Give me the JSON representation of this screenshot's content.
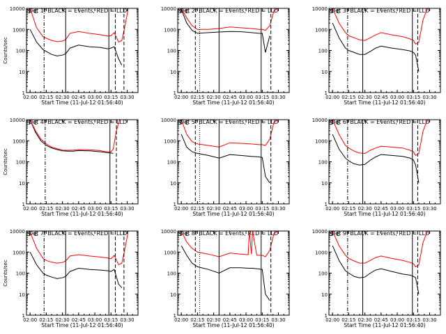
{
  "figure": {
    "background": "#ffffff",
    "axis_color": "#000000",
    "series_colors": {
      "events": "#000000",
      "lld": "#ff0000"
    }
  },
  "chart_data": [
    {
      "type": "line",
      "title": "Det 1f BLACK = Events, RED = LLD",
      "xlabel": "Start Time (11-Jul-12 01:56:40)",
      "ylabel": "Counts/sec",
      "x_ticks": [
        "02:00",
        "02:15",
        "02:30",
        "02:45",
        "03:00",
        "03:15",
        "03:30"
      ],
      "y_ticks": [
        "1",
        "10",
        "100",
        "1000",
        "10000"
      ],
      "xlim": [
        "01:56:40",
        "03:40"
      ],
      "ylim": [
        1,
        10000
      ],
      "yscale": "log",
      "x": [
        "02:00",
        "02:06",
        "02:12",
        "02:15",
        "02:20",
        "02:25",
        "02:30",
        "02:33",
        "02:37",
        "02:45",
        "02:55",
        "03:05",
        "03:12",
        "03:15",
        "03:18",
        "03:22",
        "03:25",
        "03:28",
        "03:31"
      ],
      "series": [
        {
          "name": "BLACK = Events",
          "values": [
            1000,
            250,
            110,
            90,
            65,
            55,
            60,
            70,
            130,
            180,
            150,
            140,
            120,
            130,
            150,
            40,
            20,
            null,
            null
          ]
        },
        {
          "name": "RED = LLD",
          "values": [
            10000,
            1200,
            450,
            380,
            300,
            260,
            280,
            330,
            650,
            800,
            650,
            560,
            480,
            500,
            700,
            250,
            300,
            1500,
            10000
          ]
        }
      ],
      "markers": [
        {
          "style": "dashdot",
          "x": "02:13"
        },
        {
          "style": "solid",
          "x": "02:33"
        },
        {
          "style": "solid",
          "x": "03:13"
        },
        {
          "style": "dashed",
          "x": "03:19"
        },
        {
          "style": "dashed",
          "x": "03:27"
        }
      ],
      "corner_labels": [
        "S",
        "E",
        "S",
        "E"
      ]
    },
    {
      "type": "line",
      "title": "Det 2f BLACK = Events, RED = LLD",
      "xlabel": "Start Time (11-Jul-12 01:56:40)",
      "ylabel": "",
      "x_ticks": [
        "02:00",
        "02:15",
        "02:30",
        "02:45",
        "03:00",
        "03:15",
        "03:30"
      ],
      "y_ticks": [
        "1",
        "10",
        "100",
        "1000",
        "10000"
      ],
      "xlim": [
        "01:56:40",
        "03:40"
      ],
      "ylim": [
        1,
        10000
      ],
      "yscale": "log",
      "x": [
        "02:00",
        "02:05",
        "02:10",
        "02:15",
        "02:25",
        "02:35",
        "02:45",
        "02:55",
        "03:05",
        "03:12",
        "03:15",
        "03:18",
        "03:22",
        "03:26",
        "03:30"
      ],
      "series": [
        {
          "name": "BLACK = Events",
          "values": [
            9000,
            2000,
            900,
            650,
            700,
            750,
            800,
            780,
            700,
            650,
            650,
            80,
            500,
            null,
            null
          ]
        },
        {
          "name": "RED = LLD",
          "values": [
            10000,
            3500,
            1500,
            1000,
            1000,
            1100,
            1300,
            1200,
            1100,
            1000,
            1000,
            900,
            1500,
            8000,
            10000
          ]
        }
      ],
      "markers": [
        {
          "style": "dashed",
          "x": "02:13"
        },
        {
          "style": "dotted",
          "x": "02:17"
        },
        {
          "style": "solid",
          "x": "02:35"
        },
        {
          "style": "solid",
          "x": "03:14"
        },
        {
          "style": "dashed",
          "x": "03:23"
        }
      ],
      "corner_labels": [
        "S",
        "E",
        "S",
        "E"
      ]
    },
    {
      "type": "line",
      "title": "Det 3f BLACK = Events, RED = LLD",
      "xlabel": "Start Time (11-Jul-12 01:56:40)",
      "ylabel": "",
      "x_ticks": [
        "02:00",
        "02:15",
        "02:30",
        "02:45",
        "03:00",
        "03:15",
        "03:30"
      ],
      "y_ticks": [
        "1",
        "10",
        "100",
        "1000",
        "10000"
      ],
      "xlim": [
        "01:56:40",
        "03:40"
      ],
      "ylim": [
        1,
        10000
      ],
      "yscale": "log",
      "x": [
        "02:00",
        "02:06",
        "02:12",
        "02:15",
        "02:20",
        "02:25",
        "02:30",
        "02:35",
        "02:40",
        "02:45",
        "02:55",
        "03:05",
        "03:12",
        "03:15",
        "03:17",
        "03:20",
        "03:24",
        "03:28"
      ],
      "series": [
        {
          "name": "BLACK = Events",
          "values": [
            2000,
            400,
            130,
            100,
            80,
            65,
            65,
            90,
            130,
            160,
            130,
            110,
            95,
            80,
            60,
            10,
            null,
            null
          ]
        },
        {
          "name": "RED = LLD",
          "values": [
            10000,
            2000,
            700,
            500,
            400,
            320,
            300,
            400,
            550,
            700,
            550,
            450,
            350,
            300,
            200,
            250,
            3000,
            10000
          ]
        }
      ],
      "markers": [
        {
          "style": "dashdot",
          "x": "02:14"
        },
        {
          "style": "solid",
          "x": "02:28"
        },
        {
          "style": "solid",
          "x": "03:14"
        },
        {
          "style": "dashed",
          "x": "03:19"
        }
      ],
      "corner_labels": [
        "S",
        "E",
        "S",
        "E"
      ]
    },
    {
      "type": "line",
      "title": "Det 4f BLACK = Events, RED = LLD",
      "xlabel": "Start Time (11-Jul-12 01:56:40)",
      "ylabel": "Counts/sec",
      "x_ticks": [
        "02:00",
        "02:15",
        "02:30",
        "02:45",
        "03:00",
        "03:15",
        "03:30"
      ],
      "y_ticks": [
        "1",
        "10",
        "100",
        "1000",
        "10000"
      ],
      "xlim": [
        "01:56:40",
        "03:40"
      ],
      "ylim": [
        1,
        10000
      ],
      "yscale": "log",
      "x": [
        "02:00",
        "02:05",
        "02:10",
        "02:15",
        "02:20",
        "02:25",
        "02:30",
        "02:35",
        "02:40",
        "02:45",
        "02:55",
        "03:05",
        "03:10",
        "03:15",
        "03:17",
        "03:20",
        "03:23"
      ],
      "series": [
        {
          "name": "BLACK = Events",
          "values": [
            10000,
            2500,
            1000,
            600,
            450,
            380,
            330,
            320,
            320,
            340,
            330,
            300,
            280,
            260,
            250,
            null,
            null
          ]
        },
        {
          "name": "RED = LLD",
          "values": [
            10000,
            3000,
            1200,
            700,
            500,
            420,
            360,
            350,
            360,
            380,
            370,
            340,
            300,
            300,
            400,
            3000,
            10000
          ]
        }
      ],
      "markers": [
        {
          "style": "dashdot",
          "x": "02:14"
        },
        {
          "style": "solid",
          "x": "03:14"
        },
        {
          "style": "dashed",
          "x": "03:20"
        }
      ],
      "corner_labels": [
        "S",
        "E"
      ]
    },
    {
      "type": "line",
      "title": "Det 5f BLACK = Events, RED = LLD",
      "xlabel": "Start Time (11-Jul-12 01:56:40)",
      "ylabel": "",
      "x_ticks": [
        "02:00",
        "02:15",
        "02:30",
        "02:45",
        "03:00",
        "03:15",
        "03:30"
      ],
      "y_ticks": [
        "1",
        "10",
        "100",
        "1000",
        "10000"
      ],
      "xlim": [
        "01:56:40",
        "03:40"
      ],
      "ylim": [
        1,
        10000
      ],
      "yscale": "log",
      "x": [
        "02:00",
        "02:05",
        "02:10",
        "02:15",
        "02:25",
        "02:35",
        "02:45",
        "02:55",
        "03:05",
        "03:12",
        "03:15",
        "03:18",
        "03:22",
        "03:26",
        "03:30"
      ],
      "series": [
        {
          "name": "BLACK = Events",
          "values": [
            2000,
            500,
            300,
            250,
            200,
            150,
            220,
            200,
            180,
            170,
            160,
            20,
            10,
            null,
            null
          ]
        },
        {
          "name": "RED = LLD",
          "values": [
            10000,
            2000,
            900,
            700,
            600,
            500,
            800,
            750,
            700,
            650,
            650,
            600,
            1200,
            8000,
            10000
          ]
        }
      ],
      "markers": [
        {
          "style": "dashed",
          "x": "02:13"
        },
        {
          "style": "dotted",
          "x": "02:17"
        },
        {
          "style": "solid",
          "x": "02:35"
        },
        {
          "style": "solid",
          "x": "03:14"
        },
        {
          "style": "dashed",
          "x": "03:23"
        }
      ],
      "corner_labels": [
        "S",
        "E",
        "S",
        "E"
      ]
    },
    {
      "type": "line",
      "title": "Det 6f BLACK = Events, RED = LLD",
      "xlabel": "Start Time (11-Jul-12 01:56:40)",
      "ylabel": "",
      "x_ticks": [
        "02:00",
        "02:15",
        "02:30",
        "02:45",
        "03:00",
        "03:15",
        "03:30"
      ],
      "y_ticks": [
        "1",
        "10",
        "100",
        "1000",
        "10000"
      ],
      "xlim": [
        "01:56:40",
        "03:40"
      ],
      "ylim": [
        1,
        10000
      ],
      "yscale": "log",
      "x": [
        "02:00",
        "02:06",
        "02:12",
        "02:15",
        "02:20",
        "02:25",
        "02:30",
        "02:35",
        "02:40",
        "02:45",
        "02:55",
        "03:05",
        "03:12",
        "03:15",
        "03:17",
        "03:20",
        "03:24",
        "03:28"
      ],
      "series": [
        {
          "name": "BLACK = Events",
          "values": [
            2000,
            400,
            150,
            110,
            80,
            70,
            75,
            120,
            170,
            220,
            200,
            180,
            150,
            120,
            70,
            10,
            null,
            null
          ]
        },
        {
          "name": "RED = LLD",
          "values": [
            10000,
            2000,
            600,
            450,
            320,
            260,
            250,
            350,
            450,
            550,
            500,
            450,
            350,
            300,
            200,
            250,
            3000,
            10000
          ]
        }
      ],
      "markers": [
        {
          "style": "dashdot",
          "x": "02:14"
        },
        {
          "style": "solid",
          "x": "02:28"
        },
        {
          "style": "solid",
          "x": "03:14"
        },
        {
          "style": "dashed",
          "x": "03:19"
        }
      ],
      "corner_labels": [
        "S",
        "E",
        "S",
        "E"
      ]
    },
    {
      "type": "line",
      "title": "Det 7f BLACK = Events, RED = LLD",
      "xlabel": "Start Time (11-Jul-12 01:56:40)",
      "ylabel": "Counts/sec",
      "x_ticks": [
        "02:00",
        "02:15",
        "02:30",
        "02:45",
        "03:00",
        "03:15",
        "03:30"
      ],
      "y_ticks": [
        "1",
        "10",
        "100",
        "1000",
        "10000"
      ],
      "xlim": [
        "01:56:40",
        "03:40"
      ],
      "ylim": [
        1,
        10000
      ],
      "yscale": "log",
      "x": [
        "02:00",
        "02:06",
        "02:12",
        "02:15",
        "02:20",
        "02:25",
        "02:30",
        "02:33",
        "02:37",
        "02:45",
        "02:55",
        "03:05",
        "03:12",
        "03:15",
        "03:18",
        "03:22",
        "03:25",
        "03:28",
        "03:31"
      ],
      "series": [
        {
          "name": "BLACK = Events",
          "values": [
            1000,
            250,
            100,
            80,
            65,
            55,
            60,
            70,
            120,
            170,
            150,
            140,
            130,
            120,
            150,
            30,
            20,
            null,
            null
          ]
        },
        {
          "name": "RED = LLD",
          "values": [
            9000,
            1500,
            500,
            400,
            330,
            300,
            320,
            380,
            650,
            750,
            650,
            580,
            520,
            480,
            700,
            250,
            300,
            1500,
            10000
          ]
        }
      ],
      "markers": [
        {
          "style": "dashdot",
          "x": "02:13"
        },
        {
          "style": "solid",
          "x": "02:33"
        },
        {
          "style": "solid",
          "x": "03:13"
        },
        {
          "style": "dashed",
          "x": "03:19"
        },
        {
          "style": "dashed",
          "x": "03:27"
        }
      ],
      "corner_labels": [
        "S",
        "E",
        "S",
        "E"
      ]
    },
    {
      "type": "line",
      "title": "Det 8f BLACK = Events, RED = LLD",
      "xlabel": "Start Time (11-Jul-12 01:56:40)",
      "ylabel": "",
      "x_ticks": [
        "02:00",
        "02:15",
        "02:30",
        "02:45",
        "03:00",
        "03:15",
        "03:30"
      ],
      "y_ticks": [
        "1",
        "10",
        "100",
        "1000",
        "10000"
      ],
      "xlim": [
        "01:56:40",
        "03:40"
      ],
      "ylim": [
        1,
        10000
      ],
      "yscale": "log",
      "x": [
        "02:00",
        "02:05",
        "02:10",
        "02:15",
        "02:25",
        "02:35",
        "02:45",
        "02:55",
        "03:02",
        "03:03",
        "03:05",
        "03:06",
        "03:10",
        "03:15",
        "03:18",
        "03:22",
        "03:26",
        "03:30"
      ],
      "series": [
        {
          "name": "BLACK = Events",
          "values": [
            2000,
            700,
            300,
            200,
            150,
            100,
            180,
            180,
            170,
            170,
            170,
            170,
            160,
            150,
            10,
            5,
            null,
            null
          ]
        },
        {
          "name": "RED = LLD",
          "values": [
            10000,
            3000,
            1500,
            1000,
            800,
            600,
            900,
            800,
            750,
            10000,
            800,
            10000,
            700,
            700,
            600,
            1200,
            8000,
            10000
          ]
        }
      ],
      "markers": [
        {
          "style": "dashed",
          "x": "02:13"
        },
        {
          "style": "dotted",
          "x": "02:17"
        },
        {
          "style": "solid",
          "x": "02:35"
        },
        {
          "style": "solid",
          "x": "03:14"
        },
        {
          "style": "dashed",
          "x": "03:23"
        }
      ],
      "corner_labels": [
        "S",
        "E",
        "S",
        "E"
      ]
    },
    {
      "type": "line",
      "title": "Det 9f BLACK = Events, RED = LLD",
      "xlabel": "Start Time (11-Jul-12 01:56:40)",
      "ylabel": "",
      "x_ticks": [
        "02:00",
        "02:15",
        "02:30",
        "02:45",
        "03:00",
        "03:15",
        "03:30"
      ],
      "y_ticks": [
        "1",
        "10",
        "100",
        "1000",
        "10000"
      ],
      "xlim": [
        "01:56:40",
        "03:40"
      ],
      "ylim": [
        1,
        10000
      ],
      "yscale": "log",
      "x": [
        "02:00",
        "02:06",
        "02:12",
        "02:15",
        "02:20",
        "02:25",
        "02:30",
        "02:35",
        "02:40",
        "02:45",
        "02:55",
        "03:05",
        "03:12",
        "03:15",
        "03:17",
        "03:20",
        "03:24",
        "03:28"
      ],
      "series": [
        {
          "name": "BLACK = Events",
          "values": [
            2000,
            400,
            130,
            100,
            70,
            60,
            65,
            100,
            140,
            160,
            120,
            90,
            80,
            70,
            60,
            10,
            null,
            null
          ]
        },
        {
          "name": "RED = LLD",
          "values": [
            10000,
            2000,
            700,
            500,
            380,
            300,
            300,
            400,
            550,
            650,
            500,
            400,
            320,
            280,
            200,
            250,
            3000,
            10000
          ]
        }
      ],
      "markers": [
        {
          "style": "dashdot",
          "x": "02:14"
        },
        {
          "style": "solid",
          "x": "02:28"
        },
        {
          "style": "solid",
          "x": "03:14"
        },
        {
          "style": "dashed",
          "x": "03:19"
        }
      ],
      "corner_labels": [
        "S",
        "E",
        "S",
        "E"
      ]
    }
  ]
}
